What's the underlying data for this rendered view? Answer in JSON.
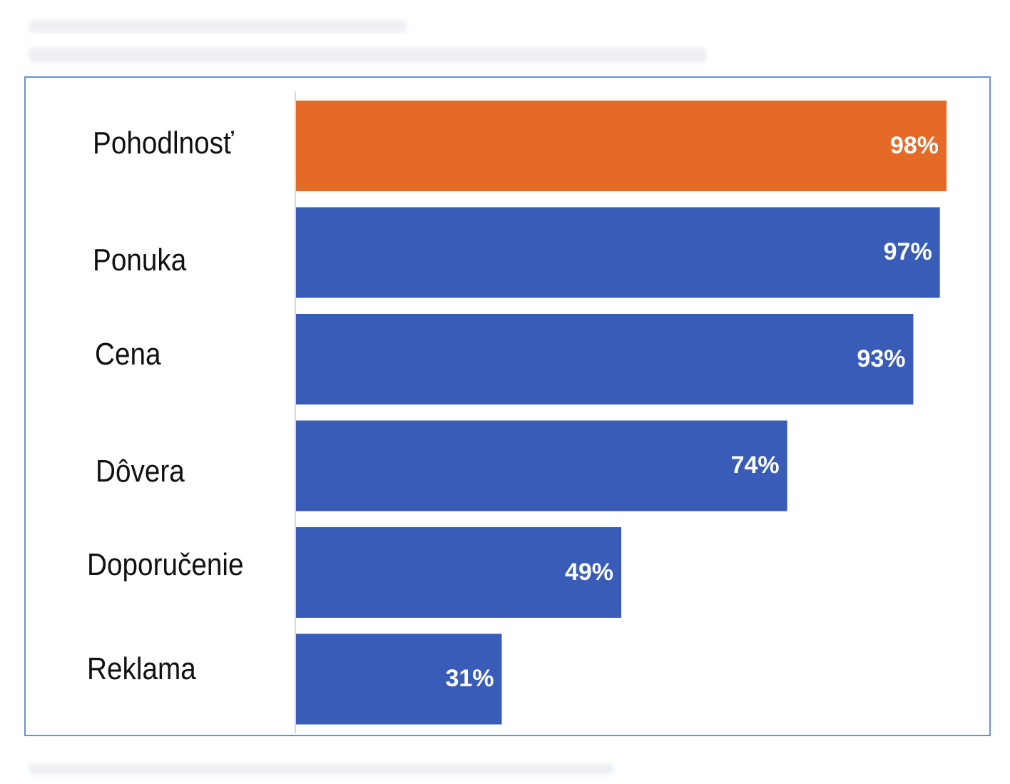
{
  "chart_data": {
    "type": "bar",
    "orientation": "horizontal",
    "categories": [
      "Pohodlnosť",
      "Ponuka",
      "Cena",
      "Dôvera",
      "Doporučenie",
      "Reklama"
    ],
    "values": [
      98,
      97,
      93,
      74,
      49,
      31
    ],
    "value_labels": [
      "98%",
      "97%",
      "93%",
      "74%",
      "49%",
      "31%"
    ],
    "unit": "%",
    "xlim": [
      0,
      100
    ],
    "grid": false,
    "legend": "none",
    "colors": {
      "highlight": "#e56a28",
      "default": "#385cb8",
      "frame": "#6a8fd6",
      "axis": "#d9d9d9",
      "value_text": "#ffffff",
      "category_text": "#111111"
    },
    "highlighted_category": "Pohodlnosť"
  }
}
